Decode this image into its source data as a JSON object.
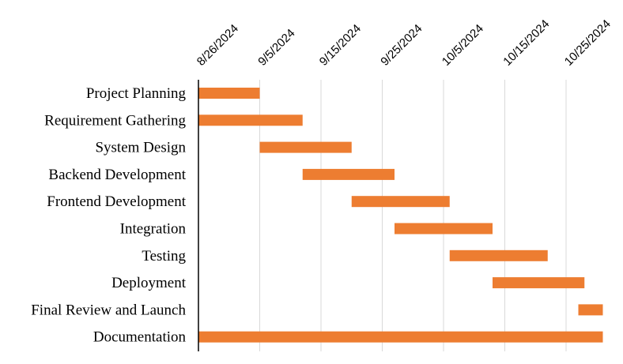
{
  "chart_data": {
    "type": "gantt",
    "title": "",
    "x_axis": {
      "min": "2024-08-26",
      "max": "2024-10-30",
      "ticks": [
        "2024-08-26",
        "2024-09-05",
        "2024-09-15",
        "2024-09-25",
        "2024-10-05",
        "2024-10-15",
        "2024-10-25"
      ],
      "tick_labels": [
        "8/26/2024",
        "9/5/2024",
        "9/15/2024",
        "9/25/2024",
        "10/5/2024",
        "10/15/2024",
        "10/25/2024"
      ],
      "position": "top"
    },
    "grid": true,
    "bar_color": "#ed7d31",
    "tasks": [
      {
        "name": "Project Planning",
        "start": "2024-08-26",
        "end": "2024-09-05"
      },
      {
        "name": "Requirement Gathering",
        "start": "2024-08-26",
        "end": "2024-09-12"
      },
      {
        "name": "System Design",
        "start": "2024-09-05",
        "end": "2024-09-20"
      },
      {
        "name": "Backend Development",
        "start": "2024-09-12",
        "end": "2024-09-27"
      },
      {
        "name": "Frontend Development",
        "start": "2024-09-20",
        "end": "2024-10-06"
      },
      {
        "name": "Integration",
        "start": "2024-09-27",
        "end": "2024-10-13"
      },
      {
        "name": "Testing",
        "start": "2024-10-06",
        "end": "2024-10-22"
      },
      {
        "name": "Deployment",
        "start": "2024-10-13",
        "end": "2024-10-28"
      },
      {
        "name": "Final Review and Launch",
        "start": "2024-10-27",
        "end": "2024-10-31"
      },
      {
        "name": "Documentation",
        "start": "2024-08-26",
        "end": "2024-10-31"
      }
    ]
  }
}
